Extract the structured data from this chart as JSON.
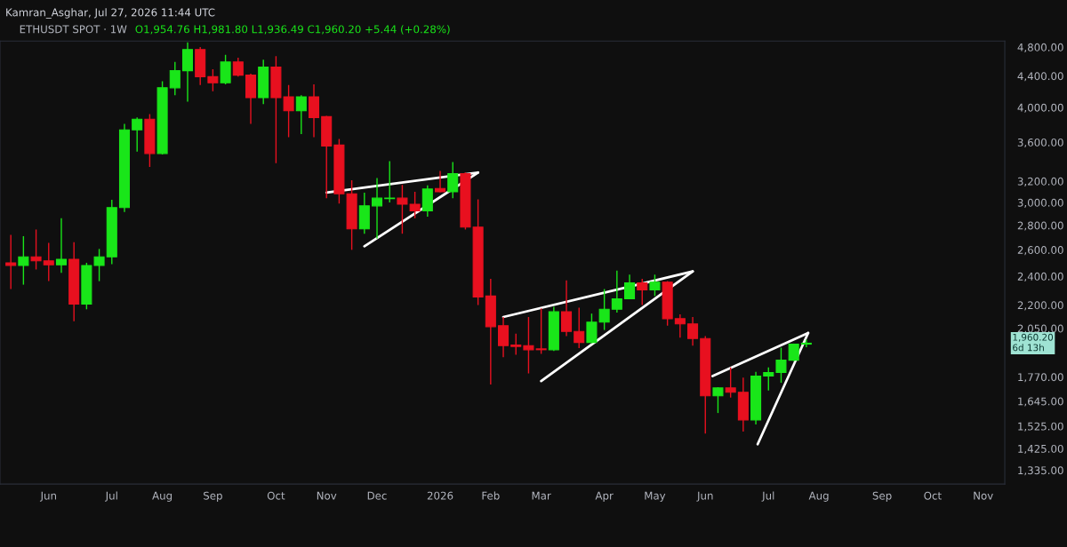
{
  "chart_data": {
    "type": "candlestick",
    "title": "Kamran_Asghar, Jul 27, 2026 11:44 UTC",
    "annotations": [
      "ETHUSDT SPOT · 1W",
      "O1,954.76 H1,981.80 L1,936.49 C1,960.20 +5.44 (+0.28%)",
      "1,960.20\n6d 13h"
    ],
    "x": [
      "2025-05-12",
      "2025-05-19",
      "2025-05-26",
      "2025-06-02",
      "2025-06-09",
      "2025-06-16",
      "2025-06-23",
      "2025-06-30",
      "2025-07-07",
      "2025-07-14",
      "2025-07-21",
      "2025-07-28",
      "2025-08-04",
      "2025-08-11",
      "2025-08-18",
      "2025-08-25",
      "2025-09-01",
      "2025-09-08",
      "2025-09-15",
      "2025-09-22",
      "2025-09-29",
      "2025-10-06",
      "2025-10-13",
      "2025-10-20",
      "2025-10-27",
      "2025-11-03",
      "2025-11-10",
      "2025-11-17",
      "2025-11-24",
      "2025-12-01",
      "2025-12-08",
      "2025-12-15",
      "2025-12-22",
      "2025-12-29",
      "2026-01-05",
      "2026-01-12",
      "2026-01-19",
      "2026-01-26",
      "2026-02-02",
      "2026-02-09",
      "2026-02-16",
      "2026-02-23",
      "2026-03-02",
      "2026-03-09",
      "2026-03-16",
      "2026-03-23",
      "2026-03-30",
      "2026-04-06",
      "2026-04-13",
      "2026-04-20",
      "2026-04-27",
      "2026-05-04",
      "2026-05-11",
      "2026-05-18",
      "2026-05-25",
      "2026-06-01",
      "2026-06-08",
      "2026-06-15",
      "2026-06-22",
      "2026-06-29",
      "2026-07-06",
      "2026-07-13",
      "2026-07-20",
      "2026-07-27"
    ],
    "ohlc": [
      [
        2500,
        2720,
        2310,
        2480
      ],
      [
        2480,
        2710,
        2340,
        2545
      ],
      [
        2545,
        2765,
        2450,
        2515
      ],
      [
        2515,
        2655,
        2365,
        2485
      ],
      [
        2485,
        2860,
        2425,
        2527
      ],
      [
        2527,
        2660,
        2095,
        2206
      ],
      [
        2206,
        2500,
        2172,
        2480
      ],
      [
        2480,
        2607,
        2365,
        2545
      ],
      [
        2545,
        3025,
        2490,
        2955
      ],
      [
        2955,
        3805,
        2915,
        3737
      ],
      [
        3737,
        3880,
        3500,
        3860
      ],
      [
        3860,
        3920,
        3340,
        3480
      ],
      [
        3480,
        4330,
        3470,
        4245
      ],
      [
        4245,
        4590,
        4150,
        4470
      ],
      [
        4470,
        4870,
        4070,
        4765
      ],
      [
        4765,
        4800,
        4280,
        4390
      ],
      [
        4390,
        4490,
        4200,
        4310
      ],
      [
        4310,
        4690,
        4290,
        4590
      ],
      [
        4590,
        4650,
        4390,
        4410
      ],
      [
        4410,
        4430,
        3805,
        4120
      ],
      [
        4120,
        4620,
        4040,
        4520
      ],
      [
        4520,
        4670,
        3380,
        4120
      ],
      [
        4130,
        4280,
        3655,
        3960
      ],
      [
        3960,
        4150,
        3690,
        4130
      ],
      [
        4130,
        4290,
        3655,
        3880
      ],
      [
        3890,
        3900,
        3040,
        3560
      ],
      [
        3570,
        3635,
        2990,
        3080
      ],
      [
        3080,
        3210,
        2600,
        2770
      ],
      [
        2770,
        3090,
        2730,
        2970
      ],
      [
        2970,
        3230,
        2690,
        3040
      ],
      [
        3035,
        3400,
        3000,
        3040
      ],
      [
        3040,
        3165,
        2730,
        2985
      ],
      [
        2985,
        3100,
        2860,
        2925
      ],
      [
        2925,
        3160,
        2875,
        3125
      ],
      [
        3130,
        3300,
        3095,
        3100
      ],
      [
        3100,
        3390,
        3040,
        3275
      ],
      [
        3275,
        3285,
        2765,
        2785
      ],
      [
        2785,
        3030,
        2200,
        2255
      ],
      [
        2261,
        2382,
        1730,
        2061
      ],
      [
        2067,
        2122,
        1879,
        1946
      ],
      [
        1950,
        2017,
        1893,
        1941
      ],
      [
        1946,
        2122,
        1789,
        1922
      ],
      [
        1927,
        2178,
        1898,
        1922
      ],
      [
        1922,
        2189,
        1915,
        2156
      ],
      [
        2156,
        2370,
        2003,
        2031
      ],
      [
        2031,
        2183,
        1931,
        1965
      ],
      [
        1965,
        2144,
        1960,
        2089
      ],
      [
        2089,
        2309,
        2040,
        2172
      ],
      [
        2172,
        2442,
        2150,
        2242
      ],
      [
        2242,
        2412,
        2240,
        2352
      ],
      [
        2352,
        2382,
        2200,
        2303
      ],
      [
        2303,
        2412,
        2261,
        2358
      ],
      [
        2358,
        2365,
        2067,
        2111
      ],
      [
        2111,
        2139,
        1993,
        2078
      ],
      [
        2078,
        2122,
        1946,
        1988
      ],
      [
        1988,
        2003,
        1491,
        1672
      ],
      [
        1672,
        1716,
        1587,
        1712
      ],
      [
        1712,
        1822,
        1663,
        1690
      ],
      [
        1690,
        1766,
        1500,
        1554
      ],
      [
        1554,
        1798,
        1533,
        1775
      ],
      [
        1775,
        1822,
        1699,
        1794
      ],
      [
        1794,
        1934,
        1739,
        1862
      ],
      [
        1862,
        1958,
        1857,
        1955
      ],
      [
        1954.76,
        1981.8,
        1936.49,
        1960.2
      ]
    ],
    "series": [
      {
        "type": "line",
        "color": "#ffffff",
        "x": [
          "2025-11-03",
          "2026-01-26"
        ],
        "values": [
          3092,
          3285
        ]
      },
      {
        "type": "line",
        "color": "#ffffff",
        "x": [
          "2025-11-24",
          "2026-01-26"
        ],
        "values": [
          2628,
          3285
        ]
      },
      {
        "type": "line",
        "color": "#ffffff",
        "x": [
          "2026-02-09",
          "2026-05-25"
        ],
        "values": [
          2122,
          2436
        ]
      },
      {
        "type": "line",
        "color": "#ffffff",
        "x": [
          "2026-03-02",
          "2026-05-25"
        ],
        "values": [
          1748,
          2436
        ]
      },
      {
        "type": "line",
        "color": "#ffffff",
        "x": [
          "2026-06-05",
          "2026-07-28"
        ],
        "values": [
          1775,
          2022
        ]
      },
      {
        "type": "line",
        "color": "#ffffff",
        "x": [
          "2026-06-30",
          "2026-07-28"
        ],
        "values": [
          1444,
          2022
        ]
      }
    ],
    "log": true,
    "grid": false,
    "legend": false,
    "xlim": [
      "2025-05-06",
      "2026-11-14"
    ],
    "xticks": [
      {
        "value": "2025-06-02",
        "label": "Jun"
      },
      {
        "value": "2025-07-07",
        "label": "Jul"
      },
      {
        "value": "2025-08-04",
        "label": "Aug"
      },
      {
        "value": "2025-09-01",
        "label": "Sep"
      },
      {
        "value": "2025-10-06",
        "label": "Oct"
      },
      {
        "value": "2025-11-03",
        "label": "Nov"
      },
      {
        "value": "2025-12-01",
        "label": "Dec"
      },
      {
        "value": "2026-01-05",
        "label": "2026"
      },
      {
        "value": "2026-02-02",
        "label": "Feb"
      },
      {
        "value": "2026-03-02",
        "label": "Mar"
      },
      {
        "value": "2026-04-06",
        "label": "Apr"
      },
      {
        "value": "2026-05-04",
        "label": "May"
      },
      {
        "value": "2026-06-01",
        "label": "Jun"
      },
      {
        "value": "2026-07-06",
        "label": "Jul"
      },
      {
        "value": "2026-08-03",
        "label": "Aug"
      },
      {
        "value": "2026-09-07",
        "label": "Sep"
      },
      {
        "value": "2026-10-05",
        "label": "Oct"
      },
      {
        "value": "2026-11-02",
        "label": "Nov"
      }
    ],
    "ylim": [
      1280,
      4890
    ],
    "yticks": [
      {
        "value": 1335,
        "label": "1,335.00"
      },
      {
        "value": 1425,
        "label": "1,425.00"
      },
      {
        "value": 1525,
        "label": "1,525.00"
      },
      {
        "value": 1645,
        "label": "1,645.00"
      },
      {
        "value": 1770,
        "label": "1,770.00"
      },
      {
        "value": 2050,
        "label": "2,050.00"
      },
      {
        "value": 2200,
        "label": "2,200.00"
      },
      {
        "value": 2400,
        "label": "2,400.00"
      },
      {
        "value": 2600,
        "label": "2,600.00"
      },
      {
        "value": 2800,
        "label": "2,800.00"
      },
      {
        "value": 3000,
        "label": "3,000.00"
      },
      {
        "value": 3200,
        "label": "3,200.00"
      },
      {
        "value": 3600,
        "label": "3,600.00"
      },
      {
        "value": 4000,
        "label": "4,000.00"
      },
      {
        "value": 4400,
        "label": "4,400.00"
      },
      {
        "value": 4800,
        "label": "4,800.00"
      }
    ]
  }
}
